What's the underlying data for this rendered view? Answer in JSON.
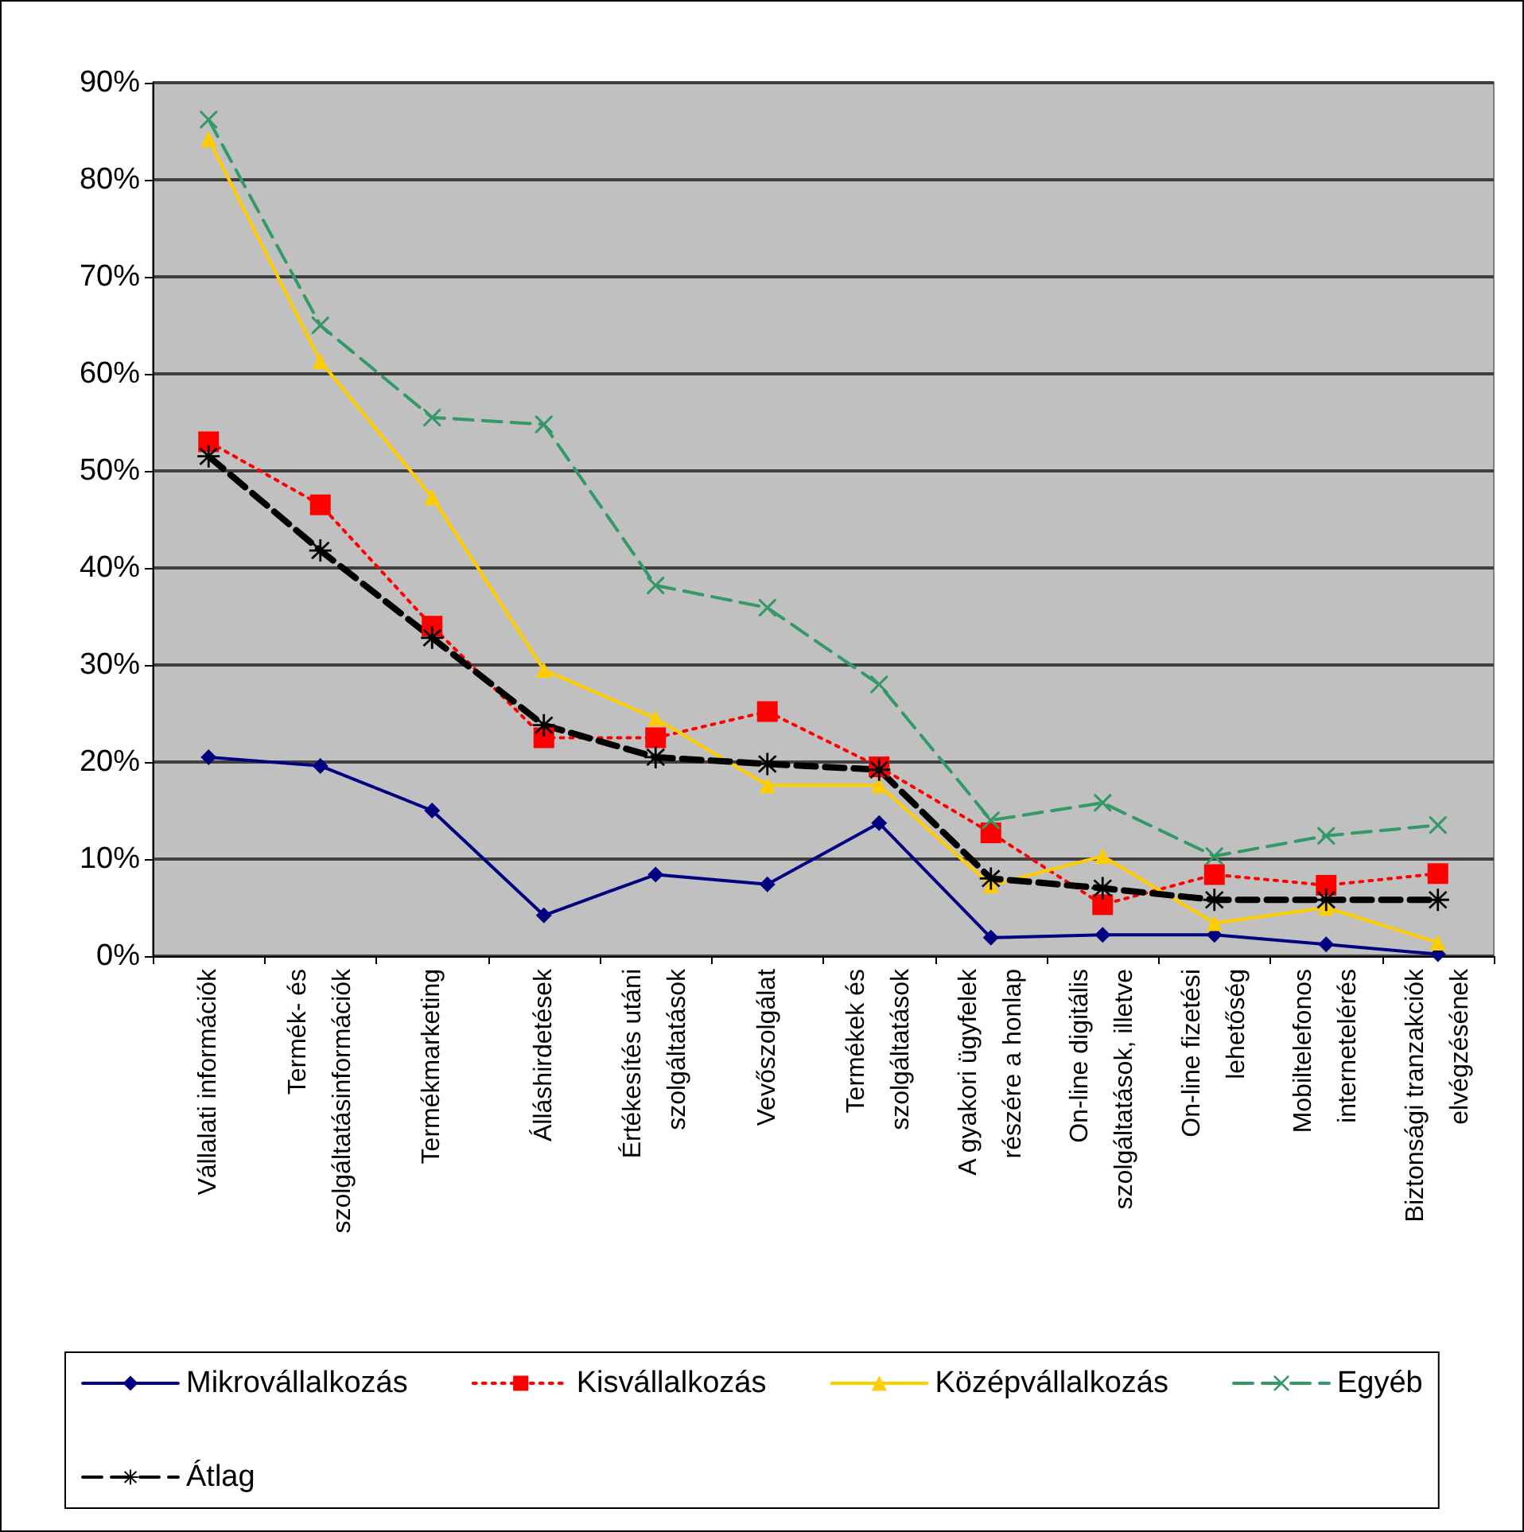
{
  "chart_data": {
    "type": "line",
    "categories": [
      "Vállalati információk",
      "Termék- és\nszolgáltatásinformációk",
      "Termékmarketing",
      "Álláshirdetések",
      "Értékesítés utáni\nszolgáltatások",
      "Vevőszolgálat",
      "Termékek és\nszolgáltatások",
      "A gyakori ügyfelek\nrészére a honlap",
      "On-line digitális\nszolgáltatások, illetve",
      "On-line fizetési\nlehetőség",
      "Mobiltelefonos\ninternetelérés",
      "Biztonsági tranzakciók\nelvégzésének"
    ],
    "series": [
      {
        "name": "Mikrovállalkozás",
        "color": "#000080",
        "marker": "diamond",
        "line_style": "solid",
        "values": [
          20.5,
          19.6,
          15,
          4.2,
          8.4,
          7.4,
          13.7,
          1.9,
          2.2,
          2.2,
          1.2,
          0.2
        ]
      },
      {
        "name": "Kisvállalkozás",
        "color": "#ff0000",
        "marker": "square",
        "line_style": "dotted",
        "values": [
          53,
          46.5,
          34,
          22.5,
          22.5,
          25.2,
          19.5,
          12.7,
          5.3,
          8.4,
          7.3,
          8.5
        ]
      },
      {
        "name": "Középvállalkozás",
        "color": "#ffcc00",
        "marker": "triangle",
        "line_style": "solid",
        "values": [
          84.2,
          61.3,
          47.3,
          29.5,
          24.5,
          17.6,
          17.6,
          7.3,
          10.3,
          3.4,
          5.0,
          1.4
        ]
      },
      {
        "name": "Egyéb",
        "color": "#339966",
        "marker": "cross",
        "line_style": "dashed",
        "values": [
          86.2,
          65,
          55.5,
          54.8,
          38.2,
          35.9,
          28,
          14,
          15.8,
          10.3,
          12.4,
          13.5
        ]
      },
      {
        "name": "Átlag",
        "color": "#000000",
        "marker": "star",
        "line_style": "dashed",
        "values": [
          51.5,
          41.8,
          32.8,
          23.8,
          20.5,
          19.8,
          19.2,
          8.0,
          7.0,
          5.8,
          5.8,
          5.8
        ]
      }
    ],
    "ylim": [
      0,
      90
    ],
    "yticks": [
      {
        "value": 0,
        "label": "0%"
      },
      {
        "value": 10,
        "label": "10%"
      },
      {
        "value": 20,
        "label": "20%"
      },
      {
        "value": 30,
        "label": "30%"
      },
      {
        "value": 40,
        "label": "40%"
      },
      {
        "value": 50,
        "label": "50%"
      },
      {
        "value": 60,
        "label": "60%"
      },
      {
        "value": 70,
        "label": "70%"
      },
      {
        "value": 80,
        "label": "80%"
      },
      {
        "value": 90,
        "label": "90%"
      }
    ],
    "grid": "y",
    "legend": "bottom"
  }
}
